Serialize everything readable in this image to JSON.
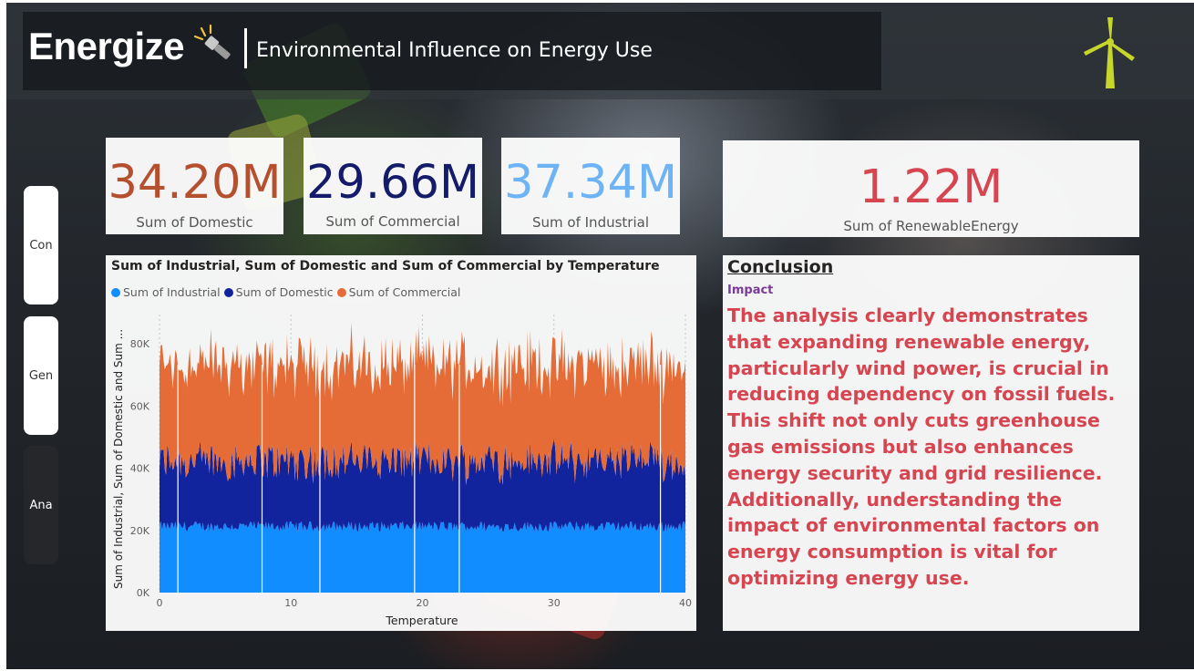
{
  "header": {
    "brand": "Energize",
    "title": "Environmental Influence on Energy Use"
  },
  "nav": [
    {
      "label": "Con",
      "active": false
    },
    {
      "label": "Gen",
      "active": false
    },
    {
      "label": "Ana",
      "active": true
    }
  ],
  "kpis": [
    {
      "value": "34.20M",
      "label": "Sum of Domestic",
      "color": "#b5502f"
    },
    {
      "value": "29.66M",
      "label": "Sum of Commercial",
      "color": "#141b6a"
    },
    {
      "value": "37.34M",
      "label": "Sum of Industrial",
      "color": "#6eb4f5"
    },
    {
      "value": "1.22M",
      "label": "Sum of RenewableEnergy",
      "color": "#d64550"
    }
  ],
  "chart": {
    "title": "Sum of Industrial, Sum of Domestic and Sum of Commercial by Temperature",
    "legend": [
      {
        "name": "Sum of Industrial",
        "color": "#118dff"
      },
      {
        "name": "Sum of Domestic",
        "color": "#12239e"
      },
      {
        "name": "Sum of Commercial",
        "color": "#e66c37"
      }
    ],
    "ylabel": "Sum of Industrial, Sum of Domestic and Sum ...",
    "xlabel": "Temperature",
    "yticks": [
      "80K",
      "60K",
      "40K",
      "20K",
      "0K"
    ],
    "xticks": [
      "0",
      "10",
      "20",
      "30",
      "40"
    ]
  },
  "chart_data": {
    "type": "area",
    "title": "Sum of Industrial, Sum of Domestic and Sum of Commercial by Temperature",
    "xlabel": "Temperature",
    "ylabel": "Sum of Industrial, Sum of Domestic and Sum ...",
    "xlim": [
      0,
      40
    ],
    "ylim": [
      0,
      85000
    ],
    "stacked": true,
    "grid": false,
    "legend_position": "top-left",
    "series": [
      {
        "name": "Sum of Industrial",
        "approx_range": [
          19000,
          23000
        ]
      },
      {
        "name": "Sum of Domestic",
        "approx_range": [
          15000,
          27000
        ]
      },
      {
        "name": "Sum of Commercial",
        "approx_range": [
          25000,
          40000
        ]
      }
    ]
  },
  "conclusion": {
    "heading": "Conclusion",
    "subheading": "Impact",
    "body": "The analysis clearly demonstrates that expanding renewable energy, particularly wind power, is crucial in reducing dependency on fossil fuels. This shift not only cuts greenhouse gas emissions but also enhances energy security and grid resilience. Additionally, understanding the impact of environmental factors on energy consumption is vital for optimizing energy use."
  },
  "icons": {
    "brand_icon": "flashlight-icon",
    "corner_icon": "wind-turbine-icon"
  }
}
